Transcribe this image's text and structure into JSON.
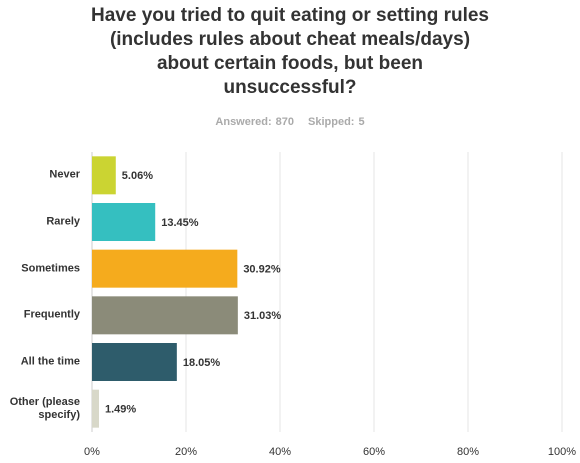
{
  "chart_data": {
    "type": "bar",
    "orientation": "horizontal",
    "title": [
      "Have you tried to quit eating or setting rules",
      "(includes rules about cheat meals/days)",
      "about certain foods, but been",
      "unsuccessful?"
    ],
    "answered": {
      "label": "Answered:",
      "value": 870
    },
    "skipped": {
      "label": "Skipped:",
      "value": 5
    },
    "categories": [
      "Never",
      "Rarely",
      "Sometimes",
      "Frequently",
      "All the time",
      "Other (please specify)"
    ],
    "values": [
      5.06,
      13.45,
      30.92,
      31.03,
      18.05,
      1.49
    ],
    "value_labels": [
      "5.06%",
      "13.45%",
      "30.92%",
      "31.03%",
      "18.05%",
      "1.49%"
    ],
    "colors": [
      "#cbd432",
      "#35bfc0",
      "#f5ab1d",
      "#8b8b79",
      "#2e5c6b",
      "#d8d8c9"
    ],
    "xlim": [
      0,
      100
    ],
    "xticks": [
      {
        "value": 0,
        "label": "0%"
      },
      {
        "value": 20,
        "label": "20%"
      },
      {
        "value": 40,
        "label": "40%"
      },
      {
        "value": 60,
        "label": "60%"
      },
      {
        "value": 80,
        "label": "80%"
      },
      {
        "value": 100,
        "label": "100%"
      }
    ],
    "grid": true
  }
}
